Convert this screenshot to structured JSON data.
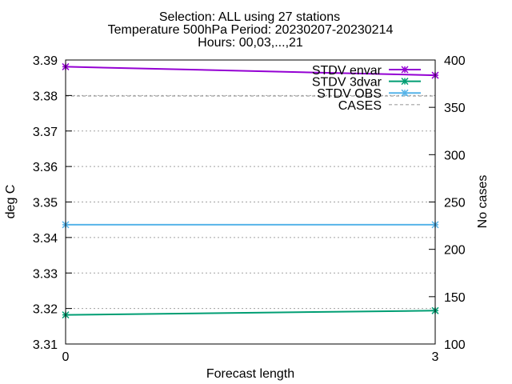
{
  "chart_data": {
    "type": "line",
    "title_lines": [
      "Selection: ALL using    27 stations",
      "Temperature 500hPa   Period: 20230207-20230214",
      "Hours: 00,03,...,21"
    ],
    "xlabel": "Forecast length",
    "ylabel": "deg C",
    "y2label": "No cases",
    "xlim": [
      0,
      3
    ],
    "ylim": [
      3.31,
      3.39
    ],
    "y2lim": [
      100,
      400
    ],
    "x_ticks": [
      "0",
      "3"
    ],
    "y_ticks": [
      "3.31",
      "3.32",
      "3.33",
      "3.34",
      "3.35",
      "3.36",
      "3.37",
      "3.38",
      "3.39"
    ],
    "y2_ticks": [
      "100",
      "150",
      "200",
      "250",
      "300",
      "350",
      "400"
    ],
    "grid": "horizontal, dotted",
    "legend_position": "top-right",
    "x": [
      0,
      3
    ],
    "series": [
      {
        "name": "STDV envar",
        "axis": "y1",
        "values": [
          3.3881,
          3.3857
        ],
        "color": "#9400d3",
        "marker": "star"
      },
      {
        "name": "STDV 3dvar",
        "axis": "y1",
        "values": [
          3.3182,
          3.3194
        ],
        "color": "#009e73",
        "marker": "star"
      },
      {
        "name": "STDV OBS",
        "axis": "y1",
        "values": [
          3.3436,
          3.3436
        ],
        "color": "#56b4e9",
        "marker": "star"
      },
      {
        "name": "CASES",
        "axis": "y2",
        "values": [
          362,
          362
        ],
        "color": "#a0a0a0",
        "marker": "none",
        "dash": "dashed"
      }
    ]
  }
}
